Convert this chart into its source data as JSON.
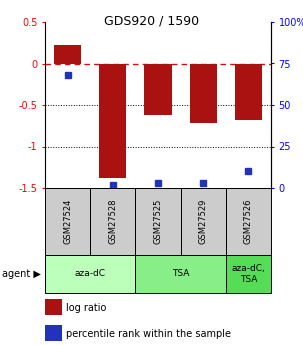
{
  "title": "GDS920 / 1590",
  "samples": [
    "GSM27524",
    "GSM27528",
    "GSM27525",
    "GSM27529",
    "GSM27526"
  ],
  "log_ratios": [
    0.22,
    -1.38,
    -0.62,
    -0.72,
    -0.68
  ],
  "percentile_ranks": [
    68,
    2,
    3,
    3,
    10
  ],
  "ylim_left": [
    -1.5,
    0.5
  ],
  "ylim_right": [
    0,
    100
  ],
  "bar_color": "#aa1111",
  "dot_color": "#2233bb",
  "hline_color": "#cc1111",
  "agent_groups": [
    {
      "label": "aza-dC",
      "span": [
        0,
        2
      ],
      "color": "#bbffbb"
    },
    {
      "label": "TSA",
      "span": [
        2,
        4
      ],
      "color": "#88ee88"
    },
    {
      "label": "aza-dC,\nTSA",
      "span": [
        4,
        5
      ],
      "color": "#55dd55"
    }
  ],
  "legend_items": [
    {
      "color": "#aa1111",
      "label": "log ratio"
    },
    {
      "color": "#2233bb",
      "label": "percentile rank within the sample"
    }
  ],
  "left_yticks": [
    0.5,
    0.0,
    -0.5,
    -1.0,
    -1.5
  ],
  "left_yticklabels": [
    "0.5",
    "0",
    "-0.5",
    "-1",
    "-1.5"
  ],
  "right_yticks": [
    0,
    25,
    50,
    75,
    100
  ],
  "right_yticklabels": [
    "0",
    "25",
    "50",
    "75",
    "100%"
  ]
}
